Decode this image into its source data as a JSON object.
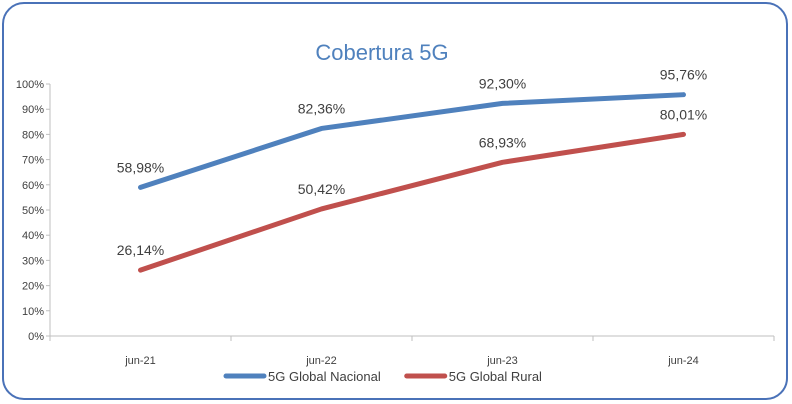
{
  "chart_data": {
    "type": "line",
    "title": "Cobertura 5G",
    "categories": [
      "jun-21",
      "jun-22",
      "jun-23",
      "jun-24"
    ],
    "ylim": [
      0,
      100
    ],
    "y_ticks": [
      "0%",
      "10%",
      "20%",
      "30%",
      "40%",
      "50%",
      "60%",
      "70%",
      "80%",
      "90%",
      "100%"
    ],
    "grid": false,
    "legend_position": "bottom",
    "series": [
      {
        "name": "5G Global Nacional",
        "values": [
          58.98,
          82.36,
          92.3,
          95.76
        ],
        "labels": [
          "58,98%",
          "82,36%",
          "92,30%",
          "95,76%"
        ],
        "color": "#4f81bd"
      },
      {
        "name": "5G Global Rural",
        "values": [
          26.14,
          50.42,
          68.93,
          80.01
        ],
        "labels": [
          "26,14%",
          "50,42%",
          "68,93%",
          "80,01%"
        ],
        "color": "#c0504d"
      }
    ],
    "title_color": "#4f81bd",
    "axis_color": "#bfbfbf"
  }
}
